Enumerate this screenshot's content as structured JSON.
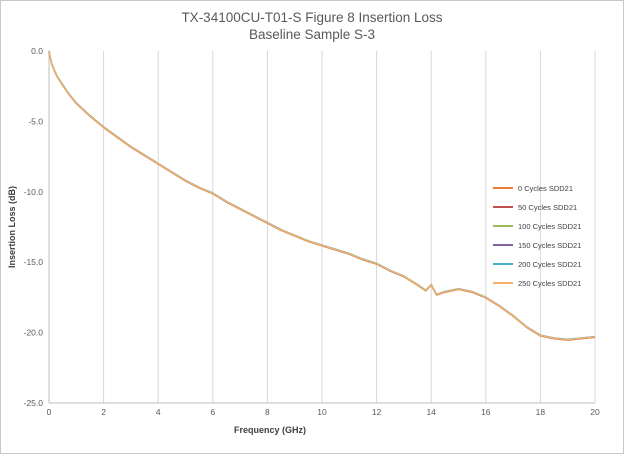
{
  "chart_data": {
    "type": "line",
    "title": [
      "TX-34100CU-T01-S Figure 8 Insertion Loss",
      "Baseline Sample S-3"
    ],
    "xlabel": "Frequency (GHz)",
    "ylabel": "Insertion Loss (dB)",
    "xlim": [
      0,
      20
    ],
    "ylim": [
      -25,
      0
    ],
    "x_ticks": [
      "0",
      "2",
      "4",
      "6",
      "8",
      "10",
      "12",
      "14",
      "16",
      "18",
      "20"
    ],
    "y_ticks": [
      "0.0",
      "-5.0",
      "-10.0",
      "-15.0",
      "-20.0",
      "-25.0"
    ],
    "grid": "vertical",
    "legend_position": "right",
    "x": [
      0,
      0.05,
      0.1,
      0.2,
      0.3,
      0.5,
      0.75,
      1,
      1.5,
      2,
      2.5,
      3,
      3.5,
      4,
      4.5,
      5,
      5.5,
      6,
      6.5,
      7,
      7.5,
      8,
      8.5,
      9,
      9.5,
      10,
      10.5,
      11,
      11.5,
      12,
      12.5,
      13,
      13.5,
      13.8,
      14,
      14.2,
      14.5,
      15,
      15.5,
      16,
      16.5,
      17,
      17.5,
      18,
      18.5,
      19,
      19.5,
      20
    ],
    "series": [
      {
        "name": "0 Cycles SDD21",
        "color": "#ED7D31",
        "values": [
          0,
          -0.5,
          -0.9,
          -1.4,
          -1.8,
          -2.4,
          -3.1,
          -3.7,
          -4.6,
          -5.4,
          -6.1,
          -6.8,
          -7.4,
          -8.0,
          -8.6,
          -9.2,
          -9.7,
          -10.1,
          -10.7,
          -11.2,
          -11.7,
          -12.2,
          -12.7,
          -13.1,
          -13.5,
          -13.8,
          -14.1,
          -14.4,
          -14.8,
          -15.1,
          -15.6,
          -16.0,
          -16.6,
          -17.0,
          -16.6,
          -17.3,
          -17.1,
          -16.9,
          -17.1,
          -17.5,
          -18.1,
          -18.8,
          -19.6,
          -20.2,
          -20.4,
          -20.5,
          -20.4,
          -20.3
        ]
      },
      {
        "name": "50 Cycles SDD21",
        "color": "#C0504D",
        "values": [
          0,
          -0.5,
          -0.9,
          -1.4,
          -1.8,
          -2.4,
          -3.1,
          -3.7,
          -4.6,
          -5.4,
          -6.1,
          -6.8,
          -7.4,
          -8.0,
          -8.6,
          -9.2,
          -9.7,
          -10.1,
          -10.7,
          -11.2,
          -11.7,
          -12.2,
          -12.7,
          -13.1,
          -13.5,
          -13.8,
          -14.1,
          -14.4,
          -14.8,
          -15.1,
          -15.6,
          -16.0,
          -16.6,
          -17.0,
          -16.6,
          -17.3,
          -17.1,
          -16.9,
          -17.1,
          -17.5,
          -18.1,
          -18.8,
          -19.6,
          -20.2,
          -20.4,
          -20.5,
          -20.4,
          -20.3
        ]
      },
      {
        "name": "100 Cycles SDD21",
        "color": "#9BBB59",
        "values": [
          0,
          -0.5,
          -0.9,
          -1.4,
          -1.8,
          -2.4,
          -3.1,
          -3.7,
          -4.6,
          -5.4,
          -6.1,
          -6.8,
          -7.4,
          -8.0,
          -8.6,
          -9.2,
          -9.7,
          -10.1,
          -10.7,
          -11.2,
          -11.7,
          -12.2,
          -12.7,
          -13.1,
          -13.5,
          -13.8,
          -14.1,
          -14.4,
          -14.8,
          -15.1,
          -15.6,
          -16.0,
          -16.6,
          -17.0,
          -16.6,
          -17.3,
          -17.1,
          -16.9,
          -17.1,
          -17.5,
          -18.1,
          -18.8,
          -19.6,
          -20.2,
          -20.4,
          -20.5,
          -20.4,
          -20.3
        ]
      },
      {
        "name": "150 Cycles SDD21",
        "color": "#8064A2",
        "values": [
          0,
          -0.5,
          -0.9,
          -1.4,
          -1.8,
          -2.4,
          -3.1,
          -3.7,
          -4.6,
          -5.4,
          -6.1,
          -6.8,
          -7.4,
          -8.0,
          -8.6,
          -9.2,
          -9.7,
          -10.1,
          -10.7,
          -11.2,
          -11.7,
          -12.2,
          -12.7,
          -13.1,
          -13.5,
          -13.8,
          -14.1,
          -14.4,
          -14.8,
          -15.1,
          -15.6,
          -16.0,
          -16.6,
          -17.0,
          -16.6,
          -17.3,
          -17.1,
          -16.9,
          -17.1,
          -17.5,
          -18.1,
          -18.8,
          -19.6,
          -20.2,
          -20.4,
          -20.5,
          -20.4,
          -20.3
        ]
      },
      {
        "name": "200 Cycles SDD21",
        "color": "#4BACC6",
        "values": [
          0,
          -0.5,
          -0.9,
          -1.4,
          -1.8,
          -2.4,
          -3.1,
          -3.7,
          -4.6,
          -5.4,
          -6.1,
          -6.8,
          -7.4,
          -8.0,
          -8.6,
          -9.2,
          -9.7,
          -10.1,
          -10.7,
          -11.2,
          -11.7,
          -12.2,
          -12.7,
          -13.1,
          -13.5,
          -13.8,
          -14.1,
          -14.4,
          -14.8,
          -15.1,
          -15.6,
          -16.0,
          -16.6,
          -17.0,
          -16.6,
          -17.3,
          -17.1,
          -16.9,
          -17.1,
          -17.5,
          -18.1,
          -18.8,
          -19.6,
          -20.2,
          -20.4,
          -20.5,
          -20.4,
          -20.3
        ]
      },
      {
        "name": "250 Cycles SDD21",
        "color": "#F6B26B",
        "values": [
          0,
          -0.5,
          -0.9,
          -1.4,
          -1.8,
          -2.4,
          -3.1,
          -3.7,
          -4.6,
          -5.4,
          -6.1,
          -6.8,
          -7.4,
          -8.0,
          -8.6,
          -9.2,
          -9.7,
          -10.1,
          -10.7,
          -11.2,
          -11.7,
          -12.2,
          -12.7,
          -13.1,
          -13.5,
          -13.8,
          -14.1,
          -14.4,
          -14.8,
          -15.1,
          -15.6,
          -16.0,
          -16.6,
          -17.0,
          -16.6,
          -17.3,
          -17.1,
          -16.9,
          -17.1,
          -17.5,
          -18.1,
          -18.8,
          -19.6,
          -20.2,
          -20.4,
          -20.5,
          -20.4,
          -20.3
        ]
      }
    ]
  }
}
